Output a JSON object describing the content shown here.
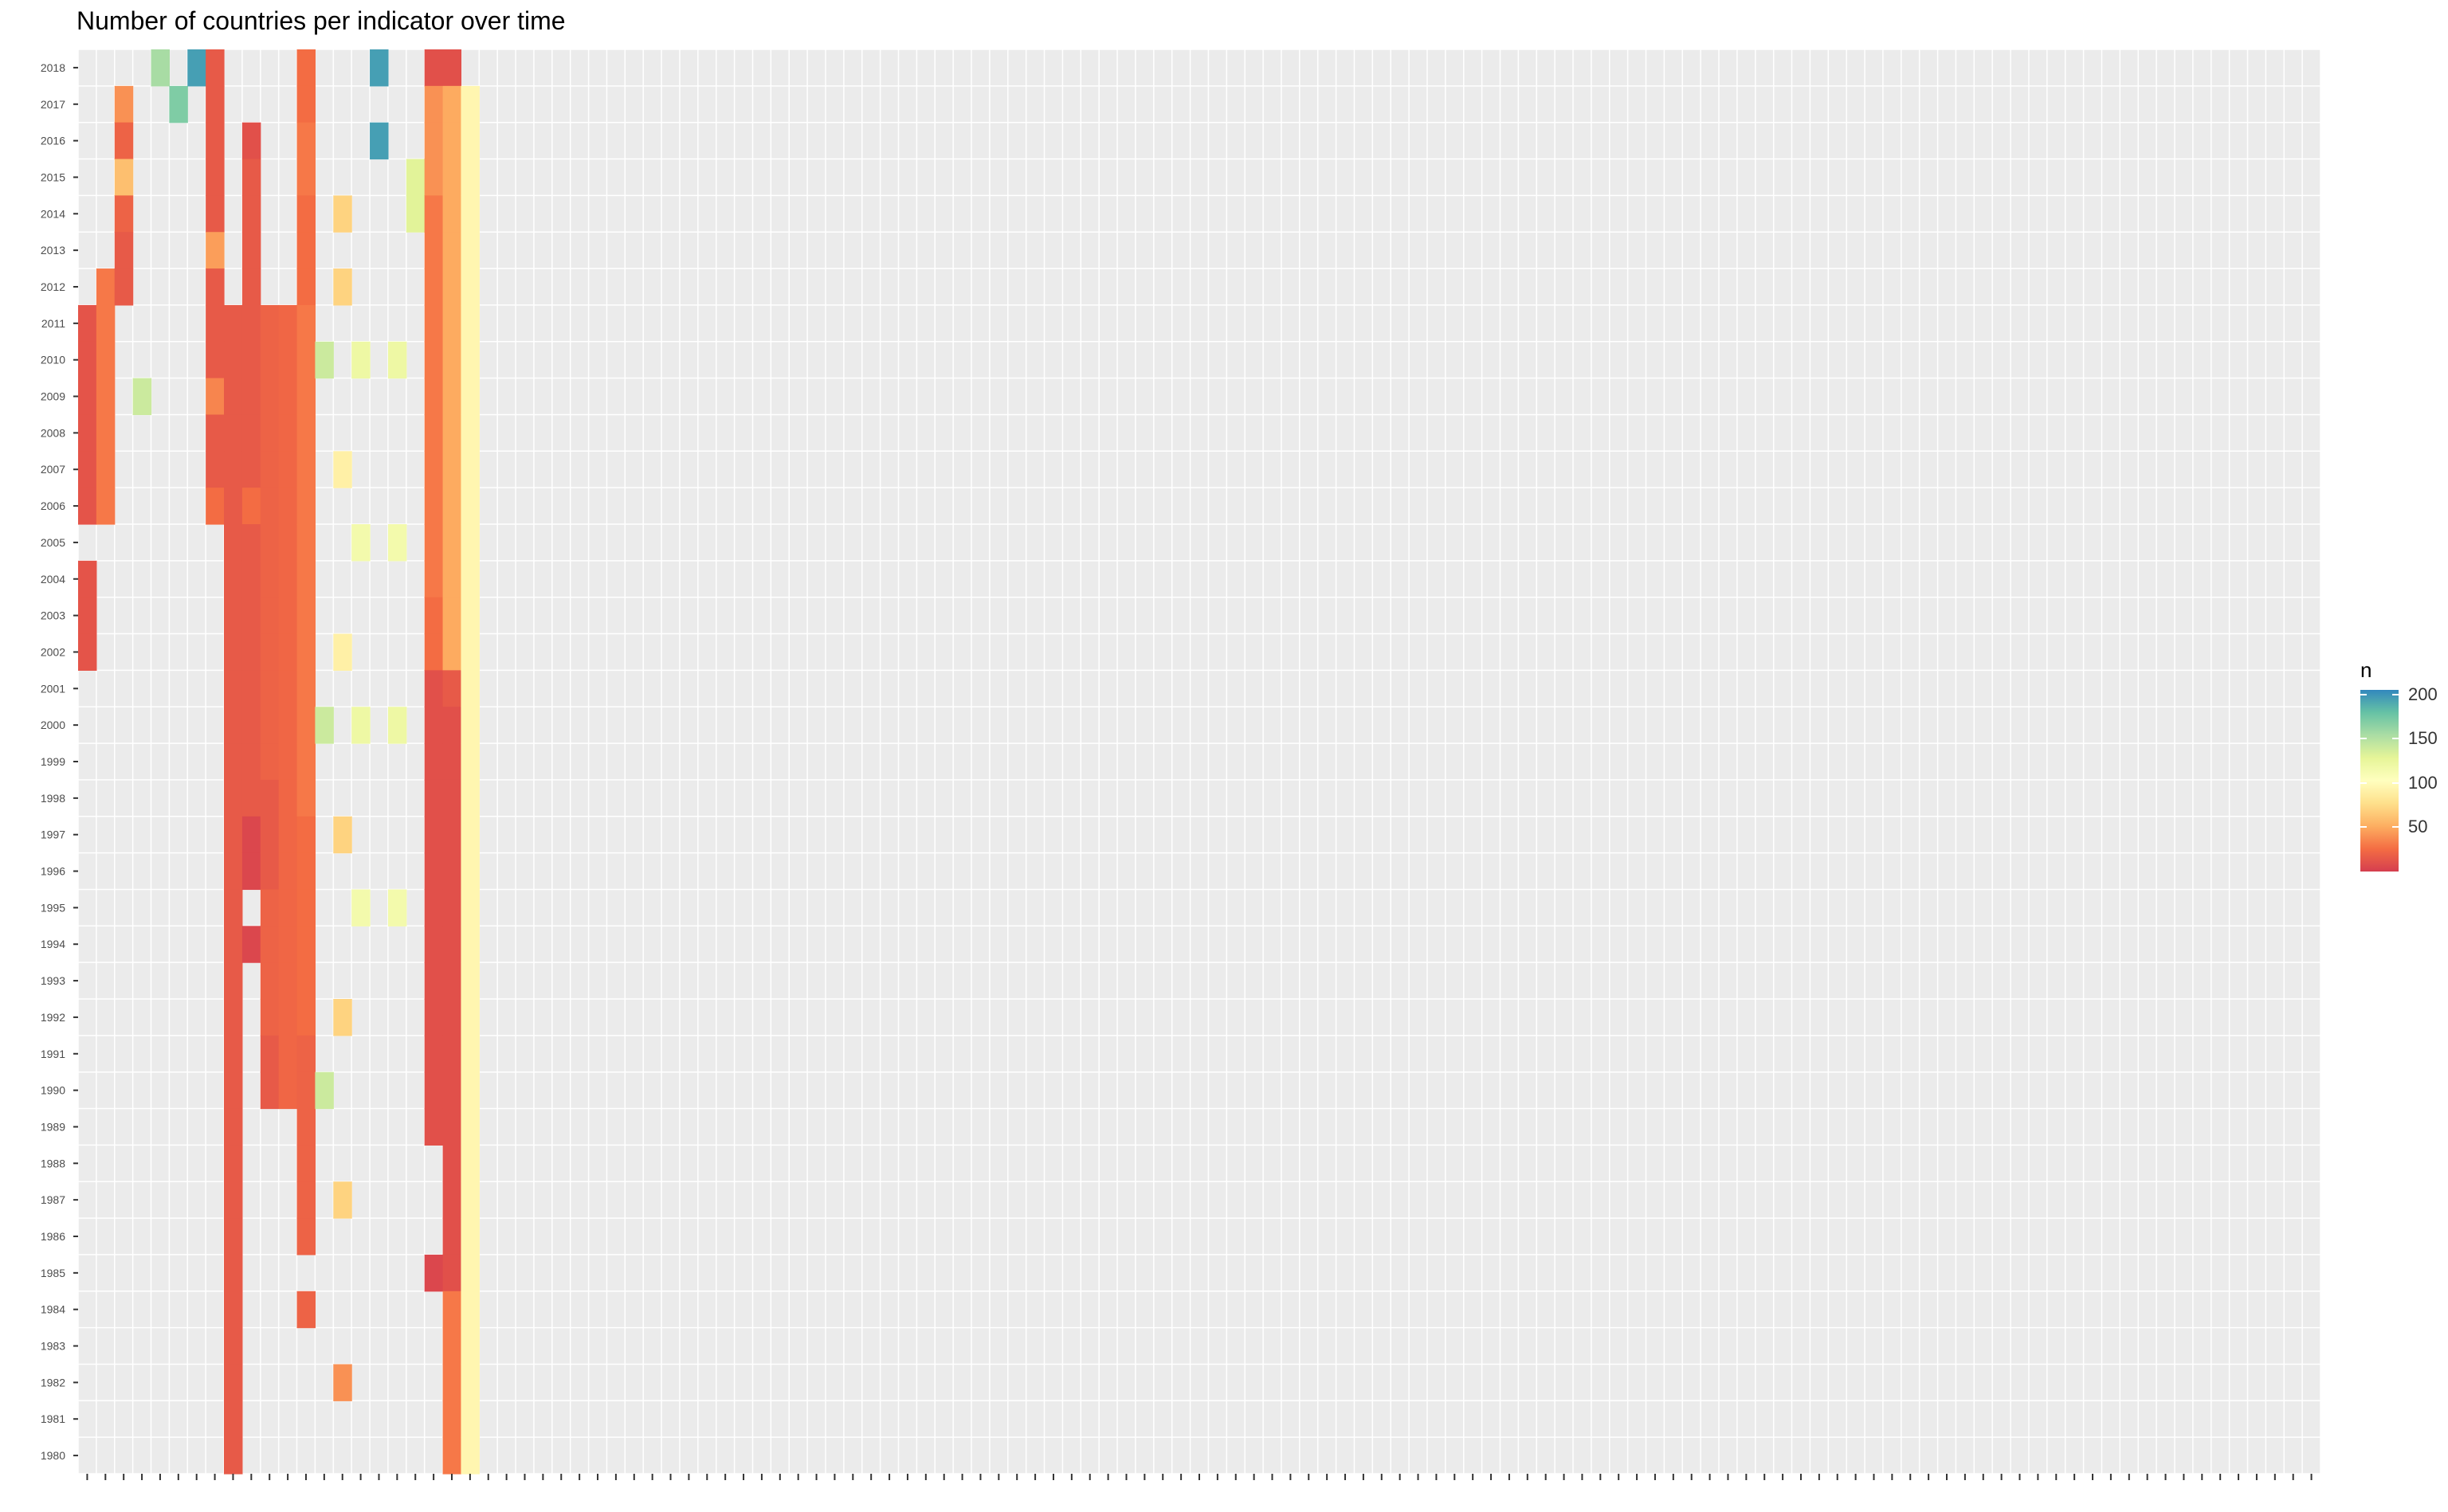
{
  "chart_data": {
    "type": "heatmap",
    "title": "Number of countries per indicator over time",
    "xlabel": "",
    "ylabel": "",
    "years": [
      2018,
      2017,
      2016,
      2015,
      2014,
      2013,
      2012,
      2011,
      2010,
      2009,
      2008,
      2007,
      2006,
      2005,
      2004,
      2003,
      2002,
      2001,
      2000,
      1999,
      1998,
      1997,
      1996,
      1995,
      1994,
      1993,
      1992,
      1991,
      1990,
      1989,
      1988,
      1987,
      1986,
      1985,
      1984,
      1983,
      1982,
      1981,
      1980
    ],
    "n_indicators": 123,
    "x_tick_labels_visible": false,
    "grid": true,
    "legend": {
      "title": "n",
      "position": "right",
      "ticks": [
        50,
        100,
        150,
        200
      ],
      "range": [
        0,
        205
      ],
      "colors": [
        "#d53e4f",
        "#f46d43",
        "#fdae61",
        "#fee08b",
        "#ffffbf",
        "#e6f598",
        "#abdda4",
        "#66c2a5",
        "#3288bd"
      ]
    },
    "colors": {
      "panel_background": "#ebebeb",
      "gridline": "#ffffff"
    },
    "value_profiles_note": "none",
    "columns": [
      {
        "v": [
          null,
          null,
          null,
          null,
          null,
          null,
          null,
          12,
          12,
          12,
          12,
          12,
          12,
          null,
          12,
          12,
          12,
          null,
          null,
          null,
          null,
          null,
          null,
          null,
          null,
          null,
          null,
          null,
          null,
          null,
          null,
          null,
          null,
          null,
          null,
          null,
          null,
          null,
          null
        ]
      },
      {
        "v": [
          null,
          null,
          null,
          null,
          null,
          null,
          30,
          30,
          30,
          30,
          30,
          30,
          30,
          null,
          null,
          null,
          null,
          null,
          null,
          null,
          null,
          null,
          null,
          null,
          null,
          null,
          null,
          null,
          null,
          null,
          null,
          null,
          null,
          null,
          null,
          null,
          null,
          null,
          null
        ]
      },
      {
        "v": [
          null,
          40,
          20,
          60,
          20,
          15,
          15,
          null,
          null,
          null,
          null,
          null,
          null,
          null,
          null,
          null,
          null,
          null,
          null,
          null,
          null,
          null,
          null,
          null,
          null,
          null,
          null,
          null,
          null,
          null,
          null,
          null,
          null,
          null,
          null,
          null,
          null,
          null,
          null
        ]
      },
      {
        "v": [
          null,
          null,
          null,
          null,
          null,
          null,
          null,
          null,
          null,
          140,
          null,
          null,
          null,
          null,
          null,
          null,
          null,
          null,
          null,
          null,
          null,
          null,
          null,
          null,
          null,
          null,
          null,
          null,
          null,
          null,
          null,
          null,
          null,
          null,
          null,
          null,
          null,
          null,
          null
        ]
      },
      {
        "v": [
          155,
          null,
          null,
          null,
          null,
          null,
          null,
          null,
          null,
          null,
          null,
          null,
          null,
          null,
          null,
          null,
          null,
          null,
          null,
          null,
          null,
          null,
          null,
          null,
          null,
          null,
          null,
          null,
          null,
          null,
          null,
          null,
          null,
          null,
          null,
          null,
          null,
          null,
          null
        ]
      },
      {
        "v": [
          null,
          170,
          null,
          null,
          null,
          null,
          null,
          null,
          null,
          null,
          null,
          null,
          null,
          null,
          null,
          null,
          null,
          null,
          null,
          null,
          null,
          null,
          null,
          null,
          null,
          null,
          null,
          null,
          null,
          null,
          null,
          null,
          null,
          null,
          null,
          null,
          null,
          null,
          null
        ]
      },
      {
        "v": [
          195,
          null,
          null,
          null,
          null,
          null,
          null,
          null,
          null,
          null,
          null,
          null,
          null,
          null,
          null,
          null,
          null,
          null,
          null,
          null,
          null,
          null,
          null,
          null,
          null,
          null,
          null,
          null,
          null,
          null,
          null,
          null,
          null,
          null,
          null,
          null,
          null,
          null,
          null
        ]
      },
      {
        "v": [
          15,
          15,
          15,
          15,
          15,
          45,
          15,
          15,
          15,
          35,
          15,
          15,
          25,
          null,
          null,
          null,
          null,
          null,
          null,
          null,
          null,
          null,
          null,
          null,
          null,
          null,
          null,
          null,
          null,
          null,
          null,
          null,
          null,
          null,
          null,
          null,
          null,
          null,
          null
        ]
      },
      {
        "v": [
          null,
          null,
          null,
          null,
          null,
          null,
          null,
          15,
          15,
          15,
          15,
          15,
          15,
          15,
          15,
          15,
          15,
          15,
          15,
          15,
          15,
          15,
          15,
          15,
          15,
          15,
          15,
          15,
          15,
          15,
          15,
          15,
          15,
          15,
          15,
          15,
          15,
          15,
          15
        ]
      },
      {
        "v": [
          null,
          null,
          10,
          15,
          15,
          15,
          15,
          15,
          15,
          15,
          15,
          15,
          25,
          15,
          15,
          15,
          15,
          15,
          15,
          15,
          15,
          5,
          5,
          null,
          5,
          null,
          null,
          null,
          null,
          null,
          null,
          null,
          null,
          null,
          null,
          null,
          null,
          null,
          null
        ]
      },
      {
        "v": [
          null,
          null,
          null,
          null,
          null,
          null,
          null,
          20,
          20,
          20,
          20,
          20,
          20,
          20,
          20,
          20,
          20,
          20,
          20,
          20,
          15,
          15,
          15,
          20,
          20,
          20,
          20,
          15,
          15,
          null,
          null,
          null,
          null,
          null,
          null,
          null,
          null,
          null,
          null
        ]
      },
      {
        "v": [
          null,
          null,
          null,
          null,
          null,
          null,
          null,
          22,
          22,
          22,
          22,
          22,
          22,
          22,
          22,
          22,
          22,
          22,
          22,
          22,
          22,
          22,
          22,
          22,
          22,
          22,
          22,
          22,
          22,
          null,
          null,
          null,
          null,
          null,
          null,
          null,
          null,
          null,
          null
        ]
      },
      {
        "v": [
          25,
          25,
          30,
          30,
          25,
          25,
          25,
          30,
          30,
          30,
          30,
          30,
          30,
          30,
          30,
          30,
          30,
          30,
          30,
          30,
          30,
          25,
          25,
          25,
          25,
          25,
          25,
          20,
          20,
          20,
          20,
          20,
          20,
          null,
          20,
          null,
          null,
          null,
          null
        ]
      },
      {
        "v": [
          null,
          null,
          null,
          null,
          null,
          null,
          null,
          null,
          140,
          null,
          null,
          null,
          null,
          null,
          null,
          null,
          null,
          null,
          140,
          null,
          null,
          null,
          null,
          null,
          null,
          null,
          null,
          null,
          140,
          null,
          null,
          null,
          null,
          null,
          null,
          null,
          null,
          null,
          null
        ]
      },
      {
        "v": [
          null,
          null,
          null,
          null,
          70,
          null,
          70,
          null,
          null,
          null,
          null,
          90,
          null,
          null,
          null,
          null,
          90,
          null,
          null,
          null,
          null,
          70,
          null,
          null,
          null,
          null,
          70,
          null,
          null,
          null,
          null,
          70,
          null,
          null,
          null,
          null,
          40,
          null,
          null
        ]
      },
      {
        "v": [
          null,
          null,
          null,
          null,
          null,
          null,
          null,
          null,
          120,
          null,
          null,
          null,
          null,
          115,
          null,
          null,
          null,
          null,
          120,
          null,
          null,
          null,
          null,
          115,
          null,
          null,
          null,
          null,
          null,
          null,
          null,
          null,
          null,
          null,
          null,
          null,
          null,
          null,
          null
        ]
      },
      {
        "v": [
          195,
          null,
          195,
          null,
          null,
          null,
          null,
          null,
          null,
          null,
          null,
          null,
          null,
          null,
          null,
          null,
          null,
          null,
          null,
          null,
          null,
          null,
          null,
          null,
          null,
          null,
          null,
          null,
          null,
          null,
          null,
          null,
          null,
          null,
          null,
          null,
          null,
          null,
          null
        ]
      },
      {
        "v": [
          null,
          null,
          null,
          null,
          null,
          null,
          null,
          null,
          120,
          null,
          null,
          null,
          null,
          115,
          null,
          null,
          null,
          null,
          120,
          null,
          null,
          null,
          null,
          115,
          null,
          null,
          null,
          null,
          null,
          null,
          null,
          null,
          null,
          null,
          null,
          null,
          null,
          null,
          null
        ]
      },
      {
        "v": [
          null,
          null,
          null,
          130,
          130,
          null,
          null,
          null,
          null,
          null,
          null,
          null,
          null,
          null,
          null,
          null,
          null,
          null,
          null,
          null,
          null,
          null,
          null,
          null,
          null,
          null,
          null,
          null,
          null,
          null,
          null,
          null,
          null,
          null,
          null,
          null,
          null,
          null,
          null
        ]
      },
      {
        "v": [
          10,
          40,
          40,
          40,
          30,
          30,
          30,
          30,
          30,
          30,
          30,
          30,
          30,
          30,
          30,
          25,
          25,
          10,
          10,
          10,
          10,
          10,
          10,
          10,
          10,
          10,
          10,
          10,
          10,
          10,
          null,
          null,
          null,
          5,
          null,
          null,
          null,
          null,
          null
        ]
      },
      {
        "v": [
          10,
          50,
          50,
          50,
          50,
          50,
          50,
          50,
          50,
          50,
          50,
          50,
          50,
          50,
          50,
          50,
          50,
          15,
          10,
          10,
          10,
          10,
          10,
          10,
          10,
          10,
          10,
          10,
          10,
          10,
          10,
          10,
          10,
          10,
          30,
          30,
          30,
          30,
          30
        ]
      },
      {
        "v": [
          null,
          95,
          95,
          95,
          95,
          95,
          95,
          95,
          95,
          95,
          95,
          95,
          95,
          95,
          95,
          95,
          95,
          95,
          95,
          95,
          95,
          95,
          95,
          95,
          95,
          95,
          95,
          95,
          95,
          95,
          95,
          95,
          95,
          95,
          95,
          95,
          95,
          95,
          95
        ]
      }
    ]
  }
}
